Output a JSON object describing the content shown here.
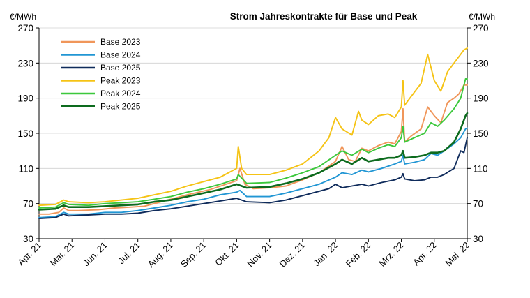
{
  "chart_data": {
    "type": "line",
    "title": "Strom Jahreskontrakte für Base und Peak",
    "ylabel_left": "€/MWh",
    "ylabel_right": "€/MWh",
    "ylim": [
      30,
      270
    ],
    "yticks": [
      "270",
      "230",
      "190",
      "150",
      "110",
      "70",
      "30"
    ],
    "x_ticks": [
      "Apr. 21",
      "Mai. 21",
      "Jun. 21",
      "Jul. 21",
      "Aug. 21",
      "Sep. 21",
      "Okt. 21",
      "Nov. 21",
      "Dez. 21",
      "Jan. 22",
      "Feb. 22",
      "Mrz. 22",
      "Apr. 22",
      "Mai. 22"
    ],
    "grid": "horizontal",
    "legend_position": "top-left",
    "series": [
      {
        "name": "Base 2023",
        "color": "#F0965A",
        "points": [
          [
            0,
            58
          ],
          [
            0.3,
            58
          ],
          [
            0.6,
            60
          ],
          [
            0.75,
            65
          ],
          [
            0.9,
            62
          ],
          [
            1.2,
            62
          ],
          [
            1.8,
            63
          ],
          [
            2.3,
            65
          ],
          [
            2.8,
            66
          ],
          [
            3.2,
            67
          ],
          [
            3.6,
            71
          ],
          [
            4.0,
            75
          ],
          [
            4.5,
            80
          ],
          [
            5.2,
            86
          ],
          [
            6.0,
            96
          ],
          [
            6.1,
            110
          ],
          [
            6.25,
            92
          ],
          [
            6.5,
            87
          ],
          [
            7.0,
            88
          ],
          [
            7.5,
            90
          ],
          [
            8.0,
            97
          ],
          [
            8.5,
            105
          ],
          [
            9.0,
            118
          ],
          [
            9.2,
            135
          ],
          [
            9.4,
            120
          ],
          [
            9.6,
            118
          ],
          [
            9.8,
            133
          ],
          [
            10.0,
            130
          ],
          [
            10.3,
            136
          ],
          [
            10.6,
            140
          ],
          [
            10.8,
            138
          ],
          [
            11.0,
            152
          ],
          [
            11.05,
            178
          ],
          [
            11.1,
            140
          ],
          [
            11.3,
            147
          ],
          [
            11.6,
            155
          ],
          [
            11.8,
            180
          ],
          [
            12.0,
            170
          ],
          [
            12.2,
            162
          ],
          [
            12.4,
            185
          ],
          [
            12.6,
            190
          ],
          [
            12.75,
            195
          ],
          [
            12.9,
            205
          ],
          [
            13.0,
            205
          ]
        ]
      },
      {
        "name": "Base 2024",
        "color": "#2196D4",
        "points": [
          [
            0,
            54
          ],
          [
            0.5,
            55
          ],
          [
            0.75,
            60
          ],
          [
            0.9,
            58
          ],
          [
            1.5,
            58
          ],
          [
            2.0,
            60
          ],
          [
            2.5,
            60
          ],
          [
            3.0,
            62
          ],
          [
            3.5,
            65
          ],
          [
            4.0,
            68
          ],
          [
            4.5,
            72
          ],
          [
            5.0,
            75
          ],
          [
            5.5,
            80
          ],
          [
            6.0,
            83
          ],
          [
            6.1,
            85
          ],
          [
            6.3,
            78
          ],
          [
            7.0,
            78
          ],
          [
            7.5,
            82
          ],
          [
            8.0,
            87
          ],
          [
            8.5,
            92
          ],
          [
            9.0,
            100
          ],
          [
            9.2,
            105
          ],
          [
            9.5,
            103
          ],
          [
            9.8,
            108
          ],
          [
            10.0,
            106
          ],
          [
            10.4,
            110
          ],
          [
            10.8,
            115
          ],
          [
            11.0,
            118
          ],
          [
            11.05,
            125
          ],
          [
            11.1,
            115
          ],
          [
            11.4,
            117
          ],
          [
            11.7,
            120
          ],
          [
            11.9,
            127
          ],
          [
            12.1,
            125
          ],
          [
            12.3,
            130
          ],
          [
            12.6,
            138
          ],
          [
            12.8,
            145
          ],
          [
            12.95,
            155
          ],
          [
            13.0,
            156
          ]
        ]
      },
      {
        "name": "Base 2025",
        "color": "#0F2B5B",
        "points": [
          [
            0,
            53
          ],
          [
            0.5,
            54
          ],
          [
            0.75,
            58
          ],
          [
            0.9,
            56
          ],
          [
            1.5,
            57
          ],
          [
            2.0,
            58
          ],
          [
            2.5,
            58
          ],
          [
            3.0,
            59
          ],
          [
            3.5,
            62
          ],
          [
            4.0,
            64
          ],
          [
            4.5,
            67
          ],
          [
            5.0,
            70
          ],
          [
            5.5,
            73
          ],
          [
            6.0,
            76
          ],
          [
            6.3,
            72
          ],
          [
            7.0,
            71
          ],
          [
            7.5,
            74
          ],
          [
            8.0,
            79
          ],
          [
            8.5,
            84
          ],
          [
            8.8,
            87
          ],
          [
            9.0,
            92
          ],
          [
            9.2,
            88
          ],
          [
            9.5,
            90
          ],
          [
            9.8,
            92
          ],
          [
            10.0,
            90
          ],
          [
            10.4,
            94
          ],
          [
            10.8,
            97
          ],
          [
            11.0,
            100
          ],
          [
            11.05,
            104
          ],
          [
            11.1,
            98
          ],
          [
            11.4,
            96
          ],
          [
            11.7,
            97
          ],
          [
            11.9,
            100
          ],
          [
            12.1,
            100
          ],
          [
            12.3,
            103
          ],
          [
            12.6,
            110
          ],
          [
            12.8,
            130
          ],
          [
            12.9,
            128
          ],
          [
            13.0,
            145
          ]
        ]
      },
      {
        "name": "Peak 2023",
        "color": "#F5C315",
        "points": [
          [
            0,
            68
          ],
          [
            0.5,
            69
          ],
          [
            0.75,
            74
          ],
          [
            0.9,
            72
          ],
          [
            1.5,
            71
          ],
          [
            2.0,
            72
          ],
          [
            2.5,
            74
          ],
          [
            3.0,
            76
          ],
          [
            3.5,
            80
          ],
          [
            4.0,
            84
          ],
          [
            4.5,
            90
          ],
          [
            5.0,
            95
          ],
          [
            5.5,
            100
          ],
          [
            6.0,
            110
          ],
          [
            6.05,
            135
          ],
          [
            6.15,
            110
          ],
          [
            6.3,
            103
          ],
          [
            7.0,
            103
          ],
          [
            7.5,
            108
          ],
          [
            8.0,
            115
          ],
          [
            8.5,
            130
          ],
          [
            8.8,
            145
          ],
          [
            9.0,
            168
          ],
          [
            9.2,
            155
          ],
          [
            9.5,
            148
          ],
          [
            9.7,
            175
          ],
          [
            9.8,
            165
          ],
          [
            10.0,
            160
          ],
          [
            10.3,
            170
          ],
          [
            10.6,
            172
          ],
          [
            10.8,
            168
          ],
          [
            11.0,
            180
          ],
          [
            11.05,
            210
          ],
          [
            11.1,
            182
          ],
          [
            11.3,
            192
          ],
          [
            11.6,
            207
          ],
          [
            11.8,
            240
          ],
          [
            12.0,
            210
          ],
          [
            12.2,
            198
          ],
          [
            12.4,
            220
          ],
          [
            12.6,
            230
          ],
          [
            12.8,
            240
          ],
          [
            12.9,
            245
          ],
          [
            13.0,
            247
          ]
        ]
      },
      {
        "name": "Peak 2024",
        "color": "#3CC83C",
        "points": [
          [
            0,
            65
          ],
          [
            0.5,
            66
          ],
          [
            0.75,
            71
          ],
          [
            0.9,
            69
          ],
          [
            1.5,
            68
          ],
          [
            2.0,
            70
          ],
          [
            2.5,
            71
          ],
          [
            3.0,
            72
          ],
          [
            3.5,
            75
          ],
          [
            4.0,
            78
          ],
          [
            4.5,
            83
          ],
          [
            5.0,
            87
          ],
          [
            5.5,
            92
          ],
          [
            6.0,
            98
          ],
          [
            6.05,
            103
          ],
          [
            6.3,
            93
          ],
          [
            7.0,
            94
          ],
          [
            7.5,
            99
          ],
          [
            8.0,
            105
          ],
          [
            8.5,
            112
          ],
          [
            9.0,
            125
          ],
          [
            9.2,
            130
          ],
          [
            9.5,
            125
          ],
          [
            9.8,
            132
          ],
          [
            10.0,
            128
          ],
          [
            10.3,
            133
          ],
          [
            10.6,
            137
          ],
          [
            10.8,
            135
          ],
          [
            11.0,
            145
          ],
          [
            11.05,
            158
          ],
          [
            11.1,
            140
          ],
          [
            11.4,
            145
          ],
          [
            11.7,
            150
          ],
          [
            11.9,
            162
          ],
          [
            12.1,
            158
          ],
          [
            12.3,
            165
          ],
          [
            12.6,
            178
          ],
          [
            12.8,
            190
          ],
          [
            12.95,
            212
          ],
          [
            13.0,
            212
          ]
        ]
      },
      {
        "name": "Peak 2025",
        "color": "#0D6B1E",
        "points": [
          [
            0,
            63
          ],
          [
            0.5,
            64
          ],
          [
            0.75,
            68
          ],
          [
            0.9,
            66
          ],
          [
            1.5,
            66
          ],
          [
            2.0,
            67
          ],
          [
            2.5,
            68
          ],
          [
            3.0,
            69
          ],
          [
            3.5,
            72
          ],
          [
            4.0,
            74
          ],
          [
            4.5,
            78
          ],
          [
            5.0,
            82
          ],
          [
            5.5,
            86
          ],
          [
            6.0,
            92
          ],
          [
            6.3,
            88
          ],
          [
            7.0,
            89
          ],
          [
            7.5,
            93
          ],
          [
            8.0,
            98
          ],
          [
            8.5,
            105
          ],
          [
            9.0,
            115
          ],
          [
            9.2,
            120
          ],
          [
            9.5,
            115
          ],
          [
            9.8,
            122
          ],
          [
            10.0,
            118
          ],
          [
            10.3,
            120
          ],
          [
            10.6,
            122
          ],
          [
            10.8,
            122
          ],
          [
            11.0,
            125
          ],
          [
            11.05,
            130
          ],
          [
            11.1,
            122
          ],
          [
            11.4,
            123
          ],
          [
            11.7,
            125
          ],
          [
            11.9,
            128
          ],
          [
            12.1,
            128
          ],
          [
            12.3,
            130
          ],
          [
            12.6,
            140
          ],
          [
            12.8,
            155
          ],
          [
            12.95,
            170
          ],
          [
            13.0,
            173
          ]
        ]
      }
    ]
  }
}
